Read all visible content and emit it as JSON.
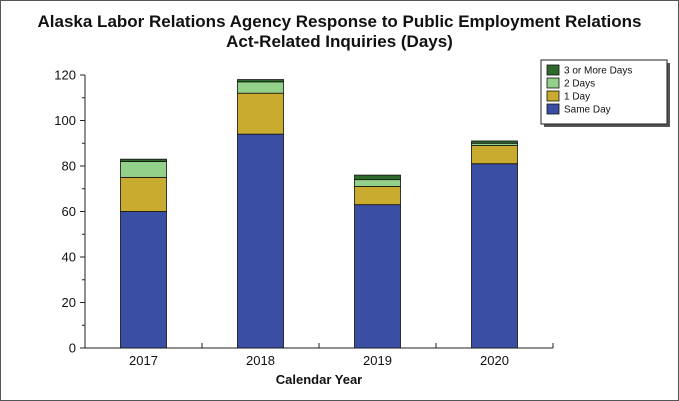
{
  "chart_data": {
    "type": "bar",
    "stacked": true,
    "title_line1": "Alaska Labor Relations Agency Response to Public Employment Relations",
    "title_line2": "Act-Related Inquiries (Days)",
    "xlabel": "Calendar Year",
    "ylabel": "",
    "ylim": [
      0,
      120
    ],
    "yticks": [
      0,
      20,
      40,
      60,
      80,
      100,
      120
    ],
    "categories": [
      "2017",
      "2018",
      "2019",
      "2020"
    ],
    "series": [
      {
        "name": "Same Day",
        "color": "#3a4fa3",
        "values": [
          60,
          94,
          63,
          81
        ]
      },
      {
        "name": "1 Day",
        "color": "#c9ab2f",
        "values": [
          15,
          18,
          8,
          8
        ]
      },
      {
        "name": "2 Days",
        "color": "#93d18a",
        "values": [
          7,
          5,
          3,
          1
        ]
      },
      {
        "name": "3 or More Days",
        "color": "#2e6b2a",
        "values": [
          1,
          1,
          2,
          1
        ]
      }
    ],
    "legend": {
      "position": "top-right",
      "order": [
        "3 or More Days",
        "2 Days",
        "1 Day",
        "Same Day"
      ]
    },
    "grid": false
  }
}
